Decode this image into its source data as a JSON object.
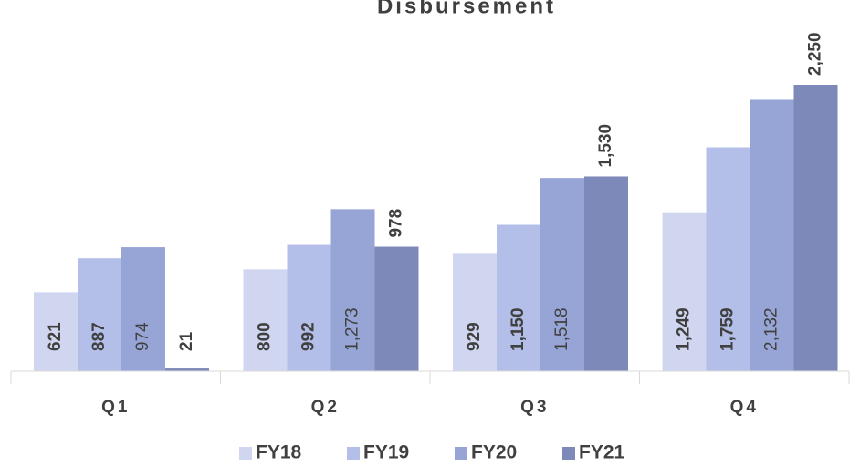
{
  "chart_data": {
    "type": "bar",
    "title": "Disbursement",
    "categories": [
      "Q1",
      "Q2",
      "Q3",
      "Q4"
    ],
    "series": [
      {
        "name": "FY18",
        "color": "#d0d6ef",
        "values": [
          621,
          800,
          929,
          1249
        ],
        "value_labels": [
          "621",
          "800",
          "929",
          "1,249"
        ]
      },
      {
        "name": "FY19",
        "color": "#b3bfe8",
        "values": [
          887,
          992,
          1150,
          1759
        ],
        "value_labels": [
          "887",
          "992",
          "1,150",
          "1,759"
        ]
      },
      {
        "name": "FY20",
        "color": "#97a5d6",
        "values": [
          974,
          1273,
          1518,
          2132
        ],
        "value_labels": [
          "974",
          "1,273",
          "1,518",
          "2,132"
        ]
      },
      {
        "name": "FY21",
        "color": "#7d89b8",
        "values": [
          21,
          978,
          1530,
          2250
        ],
        "value_labels": [
          "21",
          "978",
          "1,530",
          "2,250"
        ]
      }
    ],
    "ylim": [
      0,
      2250
    ],
    "legend": "bottom"
  }
}
